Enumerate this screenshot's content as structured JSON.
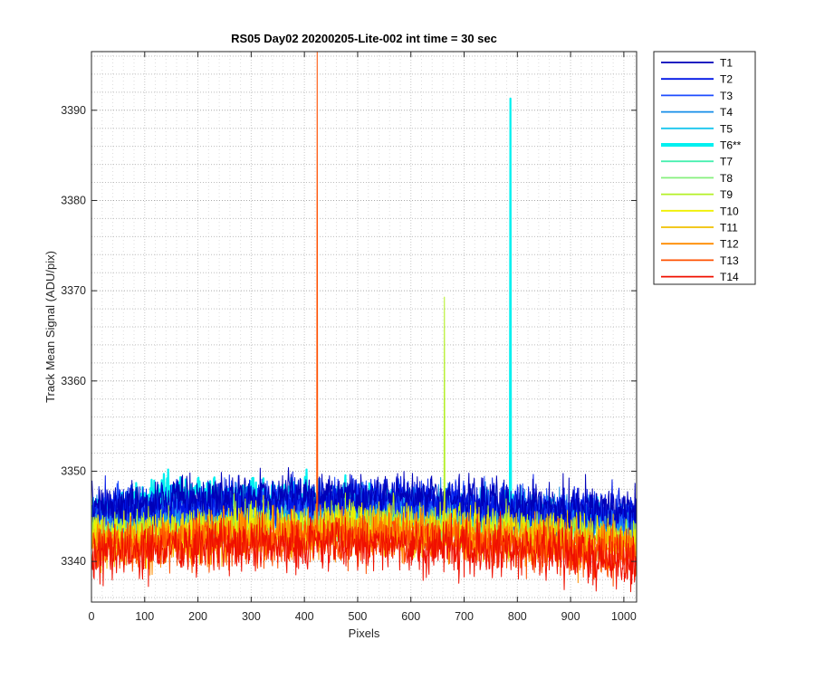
{
  "chart_data": {
    "type": "line",
    "title": "RS05 Day02 20200205-Lite-002 int time = 30 sec",
    "xlabel": "Pixels",
    "ylabel": "Track Mean Signal (ADU/pix)",
    "xlim": [
      0,
      1024
    ],
    "ylim": [
      3335.5,
      3396.5
    ],
    "xticks": [
      0,
      100,
      200,
      300,
      400,
      500,
      600,
      700,
      800,
      900,
      1000
    ],
    "yticks": [
      3340,
      3350,
      3360,
      3370,
      3380,
      3390
    ],
    "grid": "on, major and minor, dotted",
    "legend_position": "outside-right-top",
    "series": [
      {
        "name": "T1",
        "color": "#0000b8",
        "baseline": [
          [
            0,
            3346.3
          ],
          [
            300,
            3347.2
          ],
          [
            600,
            3347.3
          ],
          [
            1024,
            3345.5
          ]
        ],
        "noise": 1.25
      },
      {
        "name": "T2",
        "color": "#0016e6",
        "baseline": [
          [
            0,
            3345.9
          ],
          [
            300,
            3346.8
          ],
          [
            600,
            3347.0
          ],
          [
            1024,
            3345.2
          ]
        ],
        "noise": 1.2
      },
      {
        "name": "T3",
        "color": "#1e4cff",
        "baseline": [
          [
            0,
            3345.5
          ],
          [
            300,
            3346.4
          ],
          [
            600,
            3346.6
          ],
          [
            1024,
            3344.8
          ]
        ],
        "noise": 1.2
      },
      {
        "name": "T4",
        "color": "#168ee8",
        "baseline": [
          [
            0,
            3345.0
          ],
          [
            300,
            3346.0
          ],
          [
            600,
            3346.2
          ],
          [
            1024,
            3344.4
          ]
        ],
        "noise": 1.2
      },
      {
        "name": "T5",
        "color": "#18c6ee",
        "baseline": [
          [
            0,
            3344.6
          ],
          [
            300,
            3345.6
          ],
          [
            600,
            3345.8
          ],
          [
            1024,
            3344.0
          ]
        ],
        "noise": 1.2
      },
      {
        "name": "T6**",
        "color": "#00f0f0",
        "baseline": [
          [
            0,
            3345.2
          ],
          [
            150,
            3347.4
          ],
          [
            300,
            3347.3
          ],
          [
            500,
            3346.6
          ],
          [
            700,
            3345.7
          ],
          [
            1024,
            3343.8
          ]
        ],
        "noise": 1.05,
        "thick": true
      },
      {
        "name": "T7",
        "color": "#48f0b0",
        "baseline": [
          [
            0,
            3343.8
          ],
          [
            300,
            3344.8
          ],
          [
            600,
            3345.0
          ],
          [
            1024,
            3343.3
          ]
        ],
        "noise": 1.2
      },
      {
        "name": "T8",
        "color": "#86f07c",
        "baseline": [
          [
            0,
            3343.4
          ],
          [
            300,
            3344.4
          ],
          [
            600,
            3344.6
          ],
          [
            1024,
            3342.9
          ]
        ],
        "noise": 1.2
      },
      {
        "name": "T9",
        "color": "#b4f026",
        "baseline": [
          [
            0,
            3342.9
          ],
          [
            300,
            3344.0
          ],
          [
            600,
            3344.2
          ],
          [
            1024,
            3342.5
          ]
        ],
        "noise": 1.2
      },
      {
        "name": "T10",
        "color": "#f0f000",
        "baseline": [
          [
            0,
            3342.5
          ],
          [
            300,
            3343.6
          ],
          [
            600,
            3343.8
          ],
          [
            1024,
            3342.1
          ]
        ],
        "noise": 1.25
      },
      {
        "name": "T11",
        "color": "#f0c000",
        "baseline": [
          [
            0,
            3342.1
          ],
          [
            300,
            3343.2
          ],
          [
            600,
            3343.4
          ],
          [
            1024,
            3341.7
          ]
        ],
        "noise": 1.25
      },
      {
        "name": "T12",
        "color": "#ff8c00",
        "baseline": [
          [
            0,
            3341.7
          ],
          [
            300,
            3342.8
          ],
          [
            600,
            3343.0
          ],
          [
            1024,
            3341.3
          ]
        ],
        "noise": 1.3
      },
      {
        "name": "T13",
        "color": "#ff5000",
        "baseline": [
          [
            0,
            3341.2
          ],
          [
            300,
            3342.3
          ],
          [
            600,
            3342.5
          ],
          [
            1024,
            3340.8
          ]
        ],
        "noise": 1.35
      },
      {
        "name": "T14",
        "color": "#f01000",
        "baseline": [
          [
            0,
            3340.6
          ],
          [
            300,
            3341.8
          ],
          [
            600,
            3342.1
          ],
          [
            1024,
            3340.3
          ]
        ],
        "noise": 1.55
      }
    ],
    "spikes": [
      {
        "series": "T13",
        "x": 424,
        "y": 3396.5
      },
      {
        "series": "T9",
        "x": 663,
        "y": 3369.3
      },
      {
        "series": "T6**",
        "x": 787,
        "y": 3391.3
      }
    ]
  }
}
